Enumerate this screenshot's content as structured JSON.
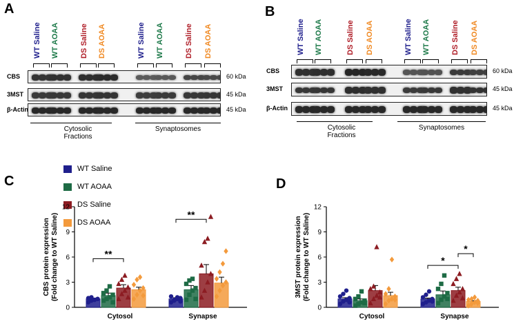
{
  "panels": {
    "a": "A",
    "b": "B",
    "c": "C",
    "d": "D"
  },
  "lanes": [
    "WT Saline",
    "WT AOAA",
    "DS Saline",
    "DS AOAA",
    "WT Saline",
    "WT AOAA",
    "DS Saline",
    "DS AOAA"
  ],
  "lane_colors": [
    "#1f1f8c",
    "#1e7a4a",
    "#b0202a",
    "#f08a24",
    "#1f1f8c",
    "#1e7a4a",
    "#b0202a",
    "#f08a24"
  ],
  "blot_rows": [
    {
      "protein": "CBS",
      "kda": "60 kDa"
    },
    {
      "protein": "3MST",
      "kda": "45 kDa"
    },
    {
      "protein": "β-Actin",
      "kda": "45 kDa"
    }
  ],
  "groups": {
    "cytosolic_line1": "Cytosolic",
    "cytosolic_line2": "Fractions",
    "synaptosomes": "Synaptosomes"
  },
  "legend": [
    {
      "label": "WT Saline",
      "color": "#1f1f8c"
    },
    {
      "label": "WT AOAA",
      "color": "#1e6b45"
    },
    {
      "label": "DS Saline",
      "color": "#8c1c22"
    },
    {
      "label": "DS AOAA",
      "color": "#f39a3c"
    }
  ],
  "chart_data": [
    {
      "type": "bar",
      "panel": "C",
      "ylabel": "CBS protein expression (Fold  change to WT Saline)",
      "ylim": [
        0,
        12
      ],
      "yticks": [
        0,
        3,
        6,
        9,
        12
      ],
      "categories": [
        "Cytosol",
        "Synapse"
      ],
      "series": [
        {
          "name": "WT Saline",
          "values": [
            1.0,
            1.0
          ],
          "errors": [
            0.1,
            0.15
          ]
        },
        {
          "name": "WT AOAA",
          "values": [
            1.4,
            2.1
          ],
          "errors": [
            0.3,
            0.5
          ]
        },
        {
          "name": "DS Saline",
          "values": [
            2.3,
            4.0
          ],
          "errors": [
            0.4,
            1.1
          ]
        },
        {
          "name": "DS AOAA",
          "values": [
            2.1,
            2.9
          ],
          "errors": [
            0.3,
            0.7
          ]
        }
      ],
      "points": [
        [
          [
            0.6,
            0.8,
            0.9,
            1.0,
            1.1,
            1.2,
            0.9,
            1.0
          ],
          [
            0.8,
            1.0,
            1.2,
            1.5,
            1.7,
            2.0,
            2.5,
            0.6
          ],
          [
            1.0,
            1.6,
            2.0,
            2.4,
            2.8,
            3.3,
            3.8,
            1.2
          ],
          [
            1.0,
            1.5,
            2.0,
            2.3,
            2.7,
            3.3,
            3.6,
            1.4
          ]
        ],
        [
          [
            0.6,
            0.8,
            1.0,
            1.1,
            1.3,
            0.9,
            1.2,
            0.7
          ],
          [
            0.9,
            1.5,
            2.0,
            2.3,
            2.8,
            3.2,
            3.4,
            1.0
          ],
          [
            1.2,
            2.0,
            3.0,
            4.0,
            5.0,
            7.8,
            8.2,
            10.8
          ],
          [
            1.3,
            2.0,
            2.6,
            3.0,
            3.4,
            4.2,
            5.2,
            6.7
          ]
        ]
      ],
      "significance": [
        {
          "label": "**",
          "from": "WT Saline@Cytosol",
          "to": "DS Saline@Cytosol",
          "y": 5.8
        },
        {
          "label": "**",
          "from": "WT Saline@Synapse",
          "to": "DS Saline@Synapse",
          "y": 10.5
        }
      ]
    },
    {
      "type": "bar",
      "panel": "D",
      "ylabel": "3MST protein expression (Fold  change to WT Saline)",
      "ylim": [
        0,
        12
      ],
      "yticks": [
        0,
        3,
        6,
        9,
        12
      ],
      "categories": [
        "Cytosol",
        "Synapse"
      ],
      "series": [
        {
          "name": "WT Saline",
          "values": [
            1.0,
            1.0
          ],
          "errors": [
            0.15,
            0.1
          ]
        },
        {
          "name": "WT AOAA",
          "values": [
            0.8,
            1.5
          ],
          "errors": [
            0.2,
            0.45
          ]
        },
        {
          "name": "DS Saline",
          "values": [
            2.0,
            2.0
          ],
          "errors": [
            0.6,
            0.4
          ]
        },
        {
          "name": "DS AOAA",
          "values": [
            1.4,
            0.7
          ],
          "errors": [
            0.4,
            0.1
          ]
        }
      ],
      "points": [
        [
          [
            0.4,
            0.7,
            0.9,
            1.1,
            1.3,
            1.6,
            2.0,
            0.6
          ],
          [
            0.2,
            0.4,
            0.6,
            0.8,
            1.0,
            1.3,
            1.9,
            0.5
          ],
          [
            0.5,
            1.0,
            1.4,
            1.8,
            2.2,
            2.5,
            7.2,
            1.2
          ],
          [
            0.4,
            0.8,
            1.0,
            1.3,
            1.6,
            2.2,
            5.7,
            0.9
          ]
        ],
        [
          [
            0.4,
            0.6,
            0.8,
            1.0,
            1.2,
            1.5,
            1.9,
            0.7
          ],
          [
            0.5,
            0.9,
            1.3,
            1.7,
            2.2,
            2.8,
            3.8,
            1.0
          ],
          [
            0.8,
            1.4,
            1.8,
            2.2,
            2.8,
            3.4,
            4.0,
            1.1
          ],
          [
            0.2,
            0.4,
            0.6,
            0.8,
            0.9,
            1.0,
            1.2,
            0.5
          ]
        ]
      ],
      "significance": [
        {
          "label": "*",
          "from": "WT Saline@Synapse",
          "to": "DS Saline@Synapse",
          "y": 5.0
        },
        {
          "label": "*",
          "from": "DS Saline@Synapse",
          "to": "DS AOAA@Synapse",
          "y": 6.4
        }
      ]
    }
  ]
}
